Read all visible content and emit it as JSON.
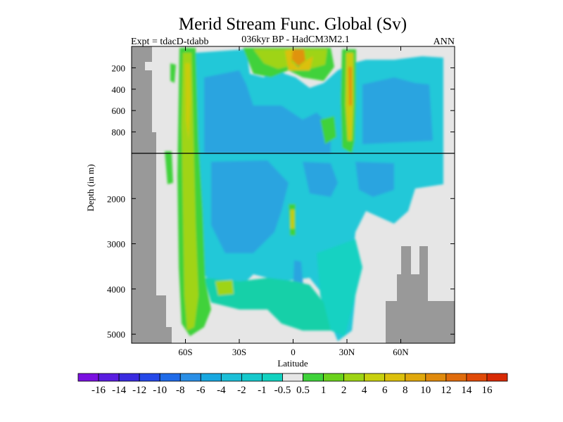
{
  "chart_data": {
    "type": "heatmap",
    "title": "Merid Stream Func. Global (Sv)",
    "subtitle_left": "Expt = tdacD-tdabb",
    "subtitle_center": "036kyr BP - HadCM3M2.1",
    "subtitle_right": "ANN",
    "xlabel": "Latitude",
    "ylabel": "Depth (in m)",
    "x_ticks": [
      {
        "value": -60,
        "label": "60S"
      },
      {
        "value": -30,
        "label": "30S"
      },
      {
        "value": 0,
        "label": "0"
      },
      {
        "value": 30,
        "label": "30N"
      },
      {
        "value": 60,
        "label": "60N"
      }
    ],
    "xlim": [
      -90,
      90
    ],
    "y_ticks_upper": [
      {
        "value": 200,
        "label": "200"
      },
      {
        "value": 400,
        "label": "400"
      },
      {
        "value": 600,
        "label": "600"
      },
      {
        "value": 800,
        "label": "800"
      }
    ],
    "y_ticks_lower": [
      {
        "value": 2000,
        "label": "2000"
      },
      {
        "value": 3000,
        "label": "3000"
      },
      {
        "value": 4000,
        "label": "4000"
      },
      {
        "value": 5000,
        "label": "5000"
      }
    ],
    "upper_panel_depth_range": [
      0,
      1000
    ],
    "lower_panel_depth_range": [
      1000,
      5200
    ],
    "colorbar": {
      "labels": [
        "-16",
        "-14",
        "-12",
        "-10",
        "-8",
        "-6",
        "-4",
        "-2",
        "-1",
        "-0.5",
        "0.5",
        "1",
        "2",
        "4",
        "6",
        "8",
        "10",
        "12",
        "14",
        "16"
      ],
      "colors": [
        "#7a10e0",
        "#5a1de0",
        "#3a2be0",
        "#2548e8",
        "#1f6be8",
        "#2a8fe6",
        "#18a8e0",
        "#1cbfd8",
        "#16c9cc",
        "#12d2c0",
        "#e6e6e6",
        "#3fd23a",
        "#6ad21c",
        "#9ed414",
        "#c8d00e",
        "#dcc00c",
        "#e0a80c",
        "#e08a0c",
        "#e06c0c",
        "#e04a08",
        "#d82a04"
      ]
    },
    "colors": {
      "land": "#999999",
      "zero": "#e6e6e6",
      "frame": "#000000"
    }
  }
}
